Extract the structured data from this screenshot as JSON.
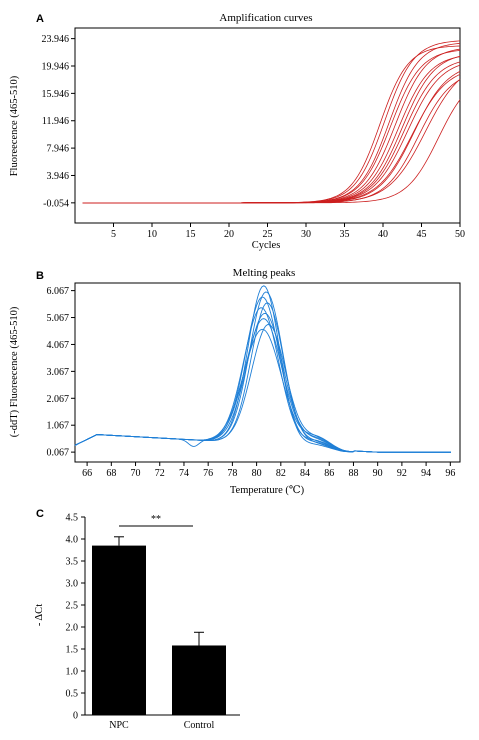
{
  "chart_data": [
    {
      "panel": "A",
      "type": "line",
      "title": "Amplification curves",
      "xlabel": "Cycles",
      "ylabel": "Fluoreecence (465-510)",
      "xlim": [
        0,
        50
      ],
      "ylim": [
        -3,
        25.5
      ],
      "xticks": [
        5,
        10,
        15,
        20,
        25,
        30,
        35,
        40,
        45,
        50
      ],
      "yticks": [
        -0.054,
        3.946,
        7.946,
        11.946,
        15.946,
        19.946,
        23.946
      ],
      "ytick_labels": [
        "-0.054",
        "3.946",
        "7.946",
        "11.946",
        "15.946",
        "19.946",
        "23.946"
      ],
      "color": "#cc1f1f",
      "series": [
        {
          "max": 22.0,
          "mid": 42.5,
          "k": 0.48
        },
        {
          "max": 23.5,
          "mid": 40.8,
          "k": 0.52
        },
        {
          "max": 21.0,
          "mid": 43.2,
          "k": 0.46
        },
        {
          "max": 22.8,
          "mid": 41.6,
          "k": 0.5
        },
        {
          "max": 20.5,
          "mid": 44.0,
          "k": 0.45
        },
        {
          "max": 23.0,
          "mid": 39.6,
          "k": 0.55
        },
        {
          "max": 21.8,
          "mid": 42.0,
          "k": 0.49
        },
        {
          "max": 20.0,
          "mid": 43.8,
          "k": 0.44
        },
        {
          "max": 22.5,
          "mid": 41.0,
          "k": 0.51
        },
        {
          "max": 19.5,
          "mid": 44.6,
          "k": 0.46
        },
        {
          "max": 23.8,
          "mid": 40.2,
          "k": 0.53
        },
        {
          "max": 21.3,
          "mid": 42.8,
          "k": 0.47
        },
        {
          "max": 20.8,
          "mid": 45.5,
          "k": 0.42
        },
        {
          "max": 19.0,
          "mid": 47.2,
          "k": 0.48
        }
      ]
    },
    {
      "panel": "B",
      "type": "line",
      "title": "Melting peaks",
      "xlabel": "Temperature (℃)",
      "ylabel": "(-ddT) Fluoreecence (465-510)",
      "xlim": [
        65,
        96.8
      ],
      "ylim": [
        -0.3,
        6.35
      ],
      "xticks": [
        66,
        68,
        70,
        72,
        74,
        76,
        78,
        80,
        82,
        84,
        86,
        88,
        90,
        92,
        94,
        96
      ],
      "yticks": [
        0.067,
        1.067,
        2.067,
        3.067,
        4.067,
        5.067,
        6.067
      ],
      "ytick_labels": [
        "0.067",
        "1.067",
        "2.067",
        "3.067",
        "4.067",
        "5.067",
        "6.067"
      ],
      "color": "#1f7fd6",
      "series": [
        {
          "peak": 5.92,
          "center": 80.6,
          "width": 1.85
        },
        {
          "peak": 5.7,
          "center": 80.8,
          "width": 1.95
        },
        {
          "peak": 5.5,
          "center": 80.5,
          "width": 2.0
        },
        {
          "peak": 5.3,
          "center": 80.9,
          "width": 1.9
        },
        {
          "peak": 5.1,
          "center": 80.4,
          "width": 2.05
        },
        {
          "peak": 4.9,
          "center": 80.7,
          "width": 2.1
        },
        {
          "peak": 4.7,
          "center": 80.6,
          "width": 2.15
        },
        {
          "peak": 4.5,
          "center": 81.0,
          "width": 2.0
        },
        {
          "peak": 4.3,
          "center": 80.5,
          "width": 2.2
        }
      ]
    },
    {
      "panel": "C",
      "type": "bar",
      "categories": [
        "NPC",
        "Control"
      ],
      "values": [
        3.85,
        1.58
      ],
      "errors": [
        0.2,
        0.3
      ],
      "ylabel": "- ΔCt",
      "ylim": [
        0,
        4.5
      ],
      "yticks": [
        0,
        0.5,
        1.0,
        1.5,
        2.0,
        2.5,
        3.0,
        3.5,
        4.0,
        4.5
      ],
      "ytick_labels": [
        "0",
        "0.5",
        "1.0",
        "1.5",
        "2.0",
        "2.5",
        "3.0",
        "3.5",
        "4.0",
        "4.5"
      ],
      "significance": "**",
      "color": "#000000"
    }
  ]
}
